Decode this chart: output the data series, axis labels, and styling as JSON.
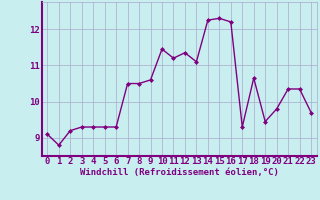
{
  "x": [
    0,
    1,
    2,
    3,
    4,
    5,
    6,
    7,
    8,
    9,
    10,
    11,
    12,
    13,
    14,
    15,
    16,
    17,
    18,
    19,
    20,
    21,
    22,
    23
  ],
  "y": [
    9.1,
    8.8,
    9.2,
    9.3,
    9.3,
    9.3,
    9.3,
    10.5,
    10.5,
    10.6,
    11.45,
    11.2,
    11.35,
    11.1,
    12.25,
    12.3,
    12.2,
    9.3,
    10.65,
    9.45,
    9.8,
    10.35,
    10.35,
    9.7
  ],
  "line_color": "#800080",
  "marker": "D",
  "marker_size": 2.0,
  "bg_color": "#c8eef0",
  "grid_color": "#aaaacc",
  "spine_color": "#800080",
  "xlabel": "Windchill (Refroidissement éolien,°C)",
  "ylim": [
    8.5,
    12.75
  ],
  "xlim": [
    -0.5,
    23.5
  ],
  "yticks": [
    9,
    10,
    11,
    12
  ],
  "xticks": [
    0,
    1,
    2,
    3,
    4,
    5,
    6,
    7,
    8,
    9,
    10,
    11,
    12,
    13,
    14,
    15,
    16,
    17,
    18,
    19,
    20,
    21,
    22,
    23
  ],
  "xlabel_fontsize": 6.5,
  "tick_fontsize": 6.5,
  "line_width": 1.0
}
